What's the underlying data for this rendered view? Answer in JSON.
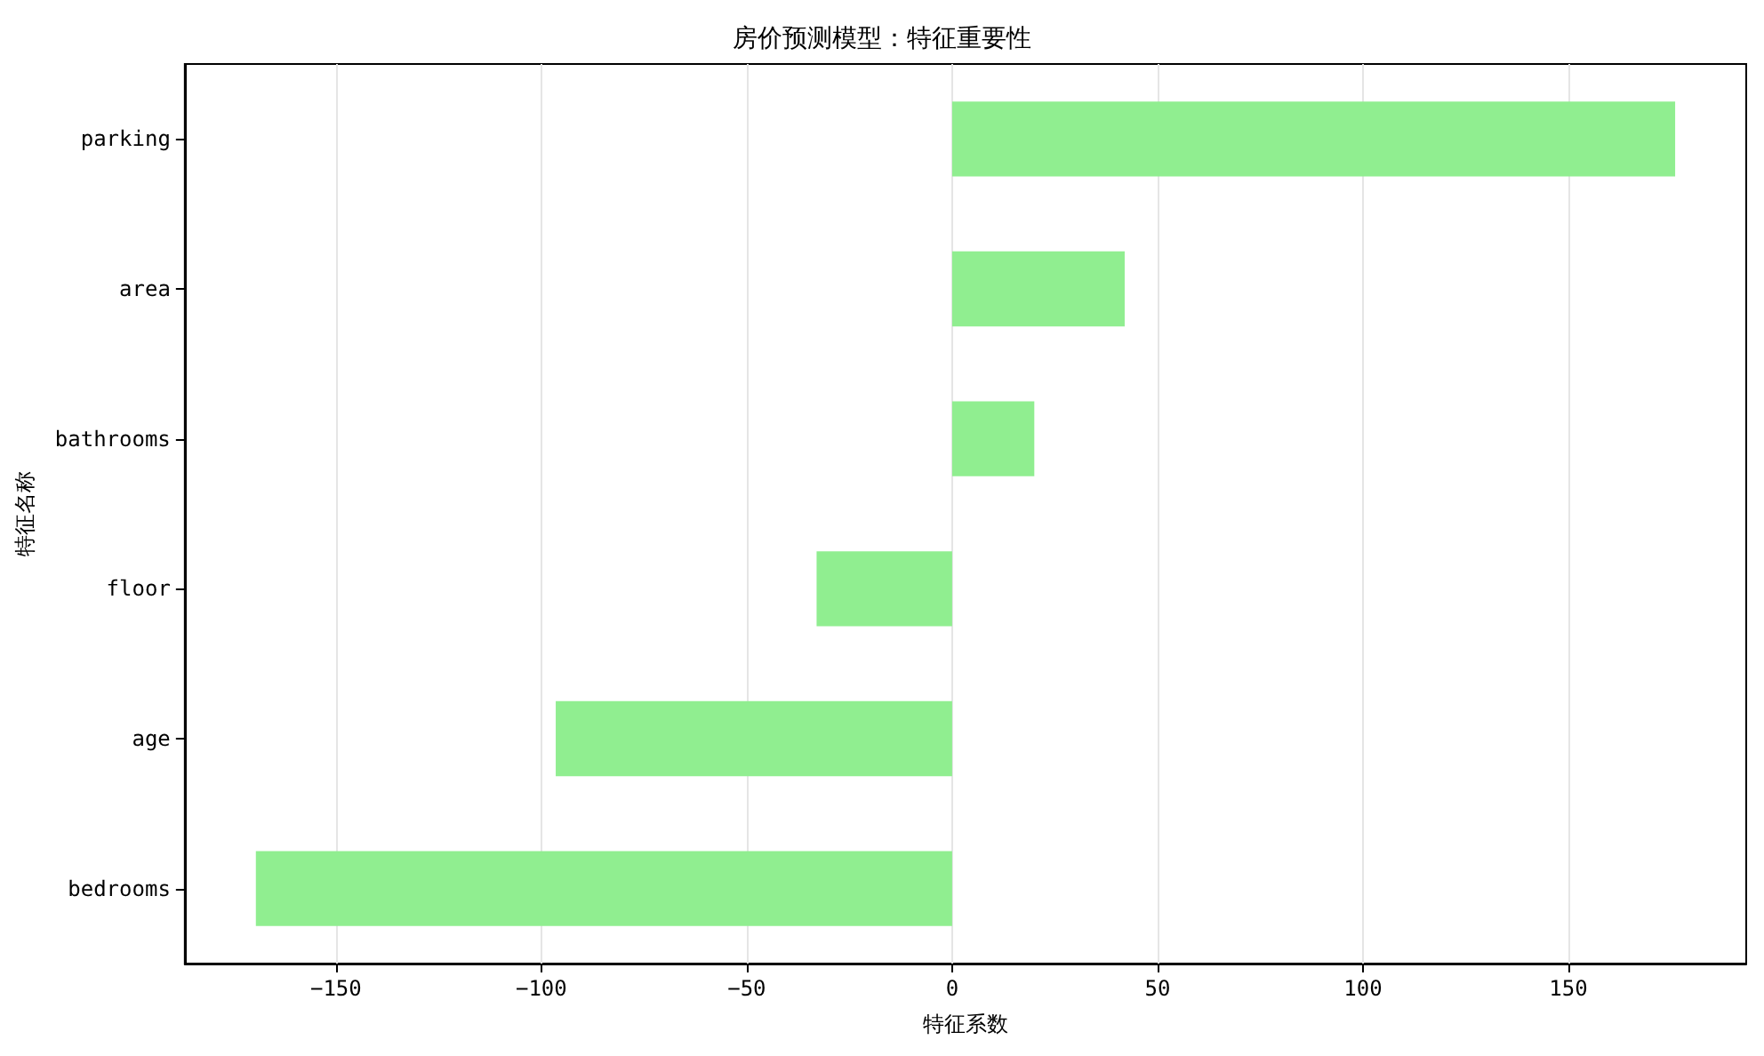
{
  "chart_data": {
    "type": "bar",
    "orientation": "horizontal",
    "title": "房价预测模型：特征重要性",
    "xlabel": "特征系数",
    "ylabel": "特征名称",
    "categories": [
      "parking",
      "area",
      "bathrooms",
      "floor",
      "age",
      "bedrooms"
    ],
    "values": [
      176,
      42,
      20,
      -33,
      -96.5,
      -169.5
    ],
    "color": "#90ee90",
    "xlim": [
      -186.8,
      193.3
    ],
    "xticks": [
      {
        "value": -150,
        "label": "−150"
      },
      {
        "value": -100,
        "label": "−100"
      },
      {
        "value": -50,
        "label": "−50"
      },
      0,
      50,
      100,
      150
    ],
    "grid": "x"
  }
}
